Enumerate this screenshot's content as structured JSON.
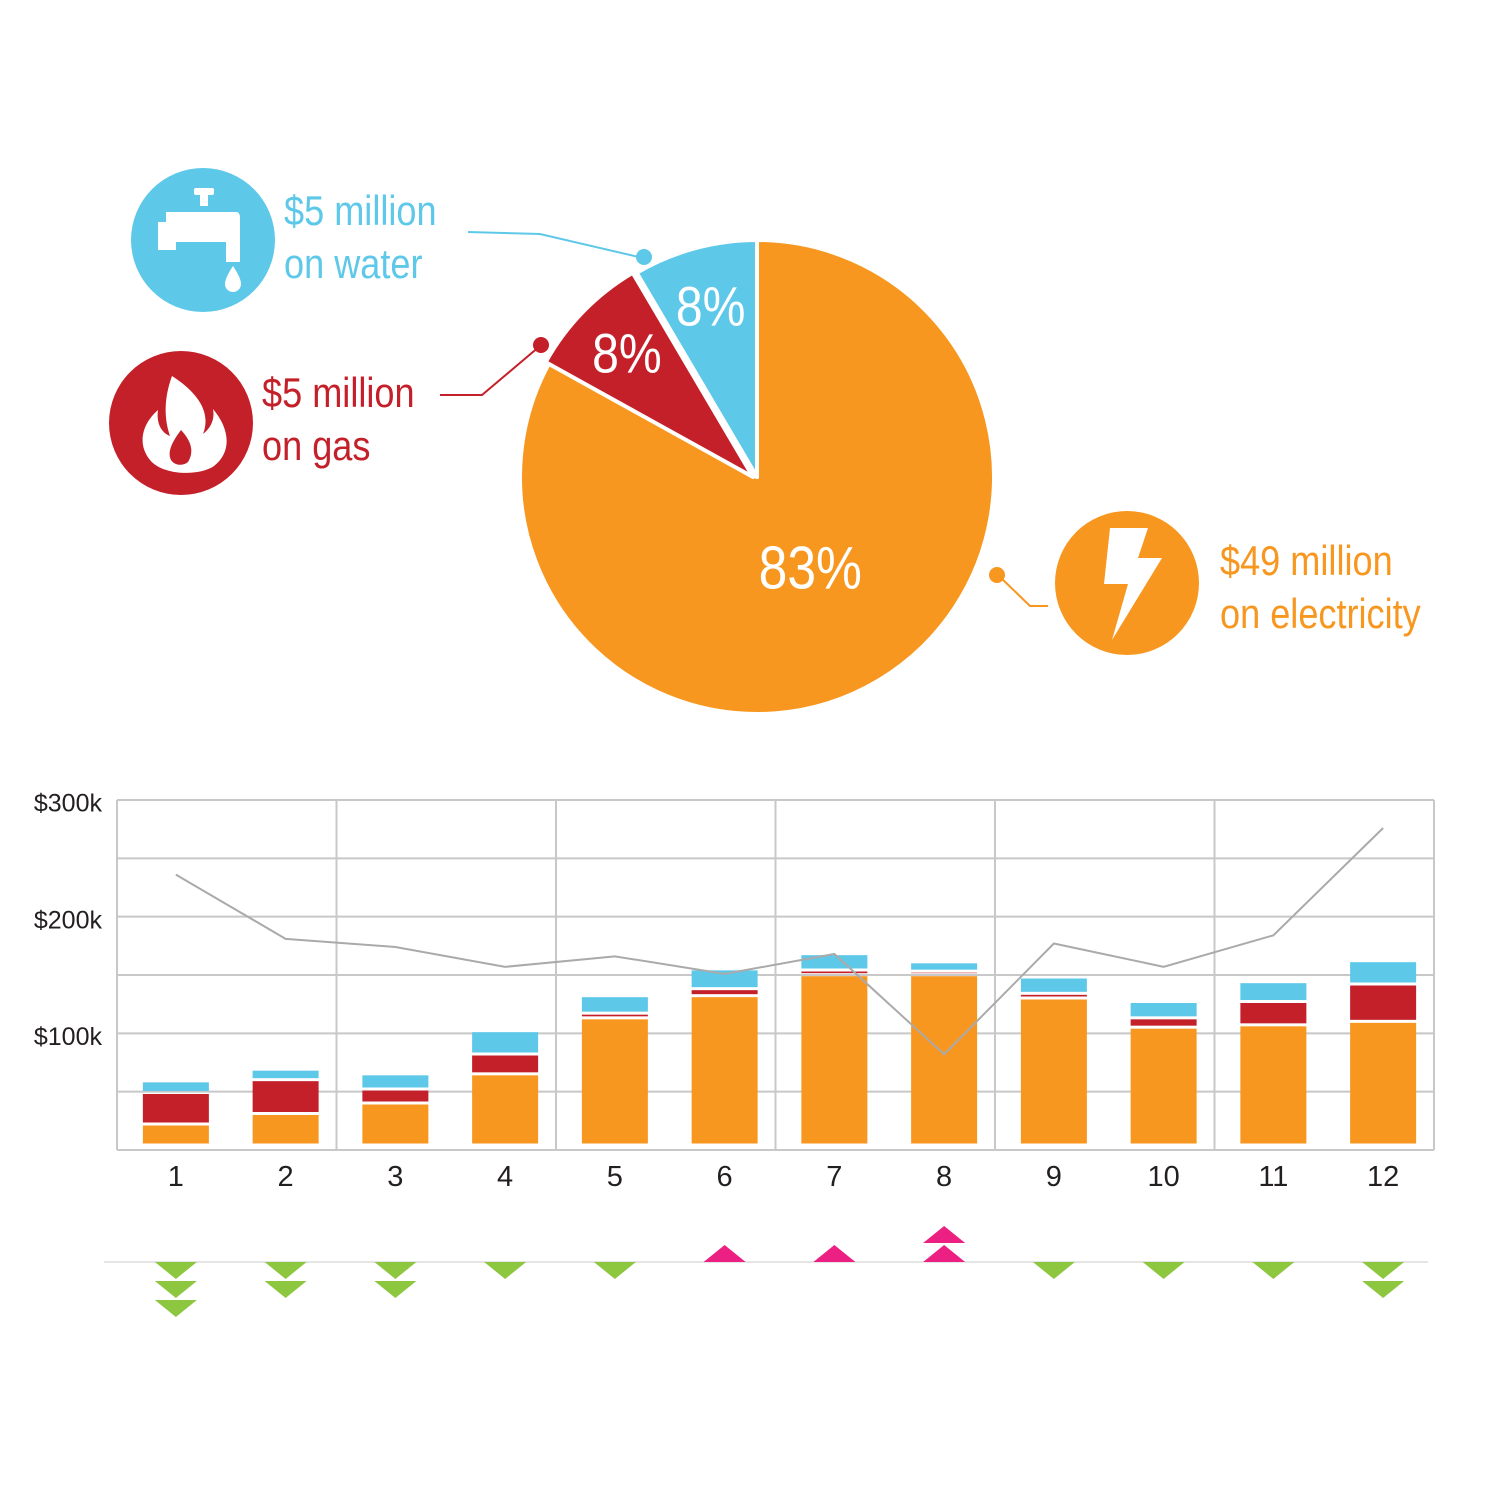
{
  "colors": {
    "electricity": "#F7971F",
    "gas": "#C4202A",
    "water": "#5EC8E9",
    "trend_line": "#AAAAAA",
    "grid": "#C8C8C8",
    "decrease_marker": "#8DC63F",
    "increase_marker": "#EC1F82"
  },
  "callouts": {
    "water": {
      "line1": "$5 million",
      "line2": "on water",
      "icon": "water-tap-icon"
    },
    "gas": {
      "line1": "$5 million",
      "line2": "on gas",
      "icon": "flame-icon"
    },
    "electricity": {
      "line1": "$49 million",
      "line2": "on electricity",
      "icon": "lightning-bolt-icon"
    }
  },
  "chart_data": [
    {
      "type": "pie",
      "slices": [
        {
          "name": "electricity",
          "label": "83%",
          "value": 49,
          "percent": 83
        },
        {
          "name": "gas",
          "label": "8%",
          "value": 5,
          "percent": 8
        },
        {
          "name": "water",
          "label": "8%",
          "value": 5,
          "percent": 8
        }
      ]
    },
    {
      "type": "bar",
      "stacked": true,
      "categories": [
        "1",
        "2",
        "3",
        "4",
        "5",
        "6",
        "7",
        "8",
        "9",
        "10",
        "11",
        "12"
      ],
      "y_tick_labels": [
        "$100k",
        "$200k",
        "$300k"
      ],
      "y_ticks": [
        100,
        200,
        300
      ],
      "ylim": [
        0,
        300
      ],
      "grid": true,
      "series": [
        {
          "key": "electricity",
          "values": [
            18,
            27,
            36,
            61,
            109,
            128,
            146,
            146,
            126,
            101,
            103,
            106
          ]
        },
        {
          "key": "gas",
          "values": [
            27,
            29,
            12,
            17,
            4,
            6,
            4,
            3,
            4,
            8,
            20,
            32
          ]
        },
        {
          "key": "water",
          "values": [
            10,
            9,
            13,
            20,
            15,
            17,
            14,
            8,
            14,
            14,
            17,
            20
          ]
        }
      ],
      "trend_line": [
        236,
        181,
        174,
        157,
        166,
        151,
        168,
        82,
        177,
        157,
        184,
        276
      ],
      "change_markers": [
        {
          "direction": "down",
          "count": 3
        },
        {
          "direction": "down",
          "count": 2
        },
        {
          "direction": "down",
          "count": 2
        },
        {
          "direction": "down",
          "count": 1
        },
        {
          "direction": "down",
          "count": 1
        },
        {
          "direction": "up",
          "count": 1
        },
        {
          "direction": "up",
          "count": 1
        },
        {
          "direction": "up",
          "count": 2
        },
        {
          "direction": "down",
          "count": 1
        },
        {
          "direction": "down",
          "count": 1
        },
        {
          "direction": "down",
          "count": 1
        },
        {
          "direction": "down",
          "count": 2
        }
      ]
    }
  ]
}
